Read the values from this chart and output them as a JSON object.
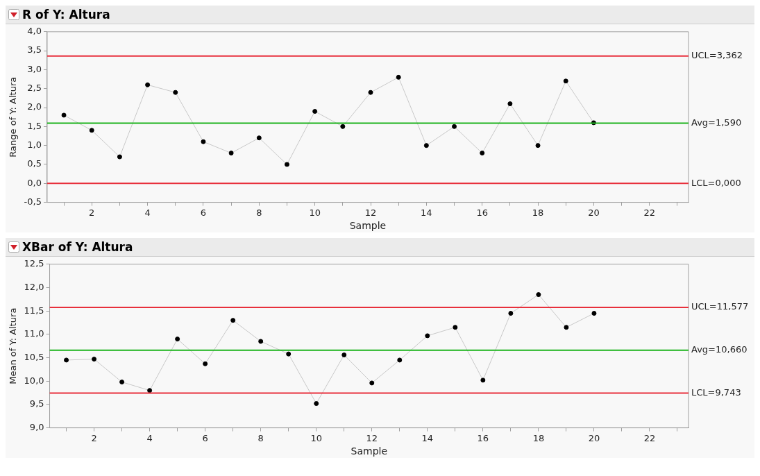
{
  "chart_data": [
    {
      "type": "line",
      "title": "R of Y: Altura",
      "xlabel": "Sample",
      "ylabel": "Range of Y: Altura",
      "marker": "circle",
      "grid": false,
      "legend": false,
      "x": [
        1,
        2,
        3,
        4,
        5,
        6,
        7,
        8,
        9,
        10,
        11,
        12,
        13,
        14,
        15,
        16,
        17,
        18,
        19,
        20
      ],
      "series": [
        {
          "color": "#c8c8c8",
          "values": [
            1.8,
            1.4,
            0.7,
            2.6,
            2.4,
            1.1,
            0.8,
            1.2,
            0.5,
            1.9,
            1.5,
            2.4,
            2.8,
            1.0,
            1.5,
            0.8,
            2.1,
            1.0,
            2.7,
            1.6
          ]
        }
      ],
      "xlim": [
        0.4,
        23.4
      ],
      "xticks": [
        {
          "value": 1,
          "label": null
        },
        2,
        {
          "value": 3,
          "label": null
        },
        4,
        {
          "value": 5,
          "label": null
        },
        6,
        {
          "value": 7,
          "label": null
        },
        8,
        {
          "value": 9,
          "label": null
        },
        10,
        {
          "value": 11,
          "label": null
        },
        12,
        {
          "value": 13,
          "label": null
        },
        14,
        {
          "value": 15,
          "label": null
        },
        16,
        {
          "value": 17,
          "label": null
        },
        18,
        {
          "value": 19,
          "label": null
        },
        20,
        {
          "value": 21,
          "label": null
        },
        22,
        {
          "value": 23,
          "label": null
        }
      ],
      "ylim": [
        -0.5,
        4.0
      ],
      "yticks": [
        {
          "value": -0.5,
          "label": "-0,5"
        },
        {
          "value": 0,
          "label": "0,0"
        },
        {
          "value": 0.5,
          "label": "0,5"
        },
        {
          "value": 1,
          "label": "1,0"
        },
        {
          "value": 1.5,
          "label": "1,5"
        },
        {
          "value": 2,
          "label": "2,0"
        },
        {
          "value": 2.5,
          "label": "2,5"
        },
        {
          "value": 3,
          "label": "3,0"
        },
        {
          "value": 3.5,
          "label": "3,5"
        },
        {
          "value": 4,
          "label": "4,0"
        }
      ],
      "ref_lines": [
        {
          "axis": "y",
          "value": 3.362,
          "label": "UCL=3,362",
          "color": "#e8303c"
        },
        {
          "axis": "y",
          "value": 1.59,
          "label": "Avg=1,590",
          "color": "#1eb41e"
        },
        {
          "axis": "y",
          "value": 0,
          "label": "LCL=0,000",
          "color": "#e8303c"
        }
      ]
    },
    {
      "type": "line",
      "title": "XBar of Y: Altura",
      "xlabel": "Sample",
      "ylabel": "Mean of Y: Altura",
      "marker": "circle",
      "grid": false,
      "legend": false,
      "x": [
        1,
        2,
        3,
        4,
        5,
        6,
        7,
        8,
        9,
        10,
        11,
        12,
        13,
        14,
        15,
        16,
        17,
        18,
        19,
        20
      ],
      "series": [
        {
          "color": "#c8c8c8",
          "values": [
            10.45,
            10.47,
            9.98,
            9.8,
            10.9,
            10.37,
            11.3,
            10.85,
            10.58,
            9.52,
            10.56,
            9.96,
            10.45,
            10.97,
            11.15,
            10.02,
            11.45,
            11.85,
            11.15,
            11.45
          ]
        }
      ],
      "xlim": [
        0.4,
        23.4
      ],
      "xticks": [
        {
          "value": 1,
          "label": null
        },
        2,
        {
          "value": 3,
          "label": null
        },
        4,
        {
          "value": 5,
          "label": null
        },
        6,
        {
          "value": 7,
          "label": null
        },
        8,
        {
          "value": 9,
          "label": null
        },
        10,
        {
          "value": 11,
          "label": null
        },
        12,
        {
          "value": 13,
          "label": null
        },
        14,
        {
          "value": 15,
          "label": null
        },
        16,
        {
          "value": 17,
          "label": null
        },
        18,
        {
          "value": 19,
          "label": null
        },
        20,
        {
          "value": 21,
          "label": null
        },
        22,
        {
          "value": 23,
          "label": null
        }
      ],
      "ylim": [
        9.0,
        12.5
      ],
      "yticks": [
        {
          "value": 9,
          "label": "9,0"
        },
        {
          "value": 9.5,
          "label": "9,5"
        },
        {
          "value": 10,
          "label": "10,0"
        },
        {
          "value": 10.5,
          "label": "10,5"
        },
        {
          "value": 11,
          "label": "11,0"
        },
        {
          "value": 11.5,
          "label": "11,5"
        },
        {
          "value": 12,
          "label": "12,0"
        },
        {
          "value": 12.5,
          "label": "12,5"
        }
      ],
      "ref_lines": [
        {
          "axis": "y",
          "value": 11.577,
          "label": "UCL=11,577",
          "color": "#e8303c"
        },
        {
          "axis": "y",
          "value": 10.66,
          "label": "Avg=10,660",
          "color": "#1eb41e"
        },
        {
          "axis": "y",
          "value": 9.743,
          "label": "LCL=9,743",
          "color": "#e8303c"
        }
      ]
    }
  ]
}
